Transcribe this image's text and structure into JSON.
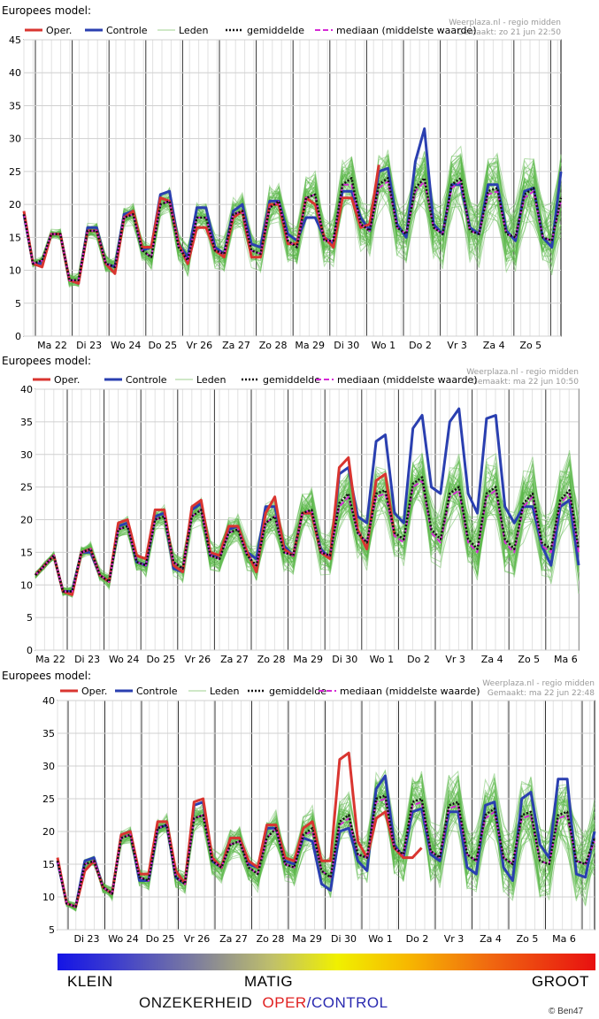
{
  "chart_data": [
    {
      "type": "line",
      "title": "Europees model:",
      "source": "Weerplaza.nl - regio midden",
      "made": "Gemaakt: zo 21 jun 22:50",
      "ylim": [
        0,
        45
      ],
      "yticks": [
        0,
        5,
        10,
        15,
        20,
        25,
        30,
        35,
        40,
        45
      ],
      "day_labels": [
        "Ma 22",
        "Di 23",
        "Wo 24",
        "Do 25",
        "Vr 26",
        "Za 27",
        "Zo 28",
        "Ma 29",
        "Di 30",
        "Wo 1",
        "Do 2",
        "Vr 3",
        "Za 4",
        "Zo 5"
      ],
      "legend": {
        "oper": "Oper.",
        "controle": "Controle",
        "leden": "Leden",
        "gemiddelde": "gemiddelde",
        "mediaan": "mediaan (middelste waarde)"
      },
      "series": {
        "oper": [
          19,
          11,
          10.5,
          15.5,
          15.5,
          8.5,
          8,
          16,
          16,
          11,
          9.5,
          18,
          19,
          13.5,
          13.5,
          21,
          20.5,
          14,
          11,
          16.5,
          16.5,
          13,
          12,
          18,
          19,
          12,
          12,
          20,
          20,
          14,
          14,
          21,
          20,
          15,
          13.5,
          21,
          21,
          16.5,
          17,
          26,
          null
        ],
        "controle": [
          18.5,
          11,
          11,
          15.5,
          15.5,
          8.5,
          8,
          16.5,
          16.5,
          11,
          10.5,
          18.5,
          19,
          13,
          13.5,
          21.5,
          22,
          14,
          12,
          19.5,
          19.5,
          13.5,
          12.5,
          19,
          20,
          14,
          13.5,
          20.5,
          20.5,
          15.5,
          14.5,
          18,
          18,
          15,
          14,
          22,
          22,
          18,
          16,
          25,
          25.5,
          17,
          15,
          26.5,
          31.5,
          17,
          15.5,
          23,
          23,
          16.5,
          15.5,
          23,
          23,
          16,
          14.5,
          22,
          22.5,
          15,
          13.5,
          25
        ],
        "gemiddelde": [
          18.5,
          11,
          11.5,
          15.5,
          15.5,
          8.5,
          8.5,
          16,
          16,
          11,
          10.5,
          18,
          18.5,
          13,
          12,
          20,
          20.5,
          13.5,
          11.5,
          18,
          18,
          13,
          12.5,
          18.5,
          19,
          13,
          12.5,
          19.5,
          20.5,
          14.5,
          13.5,
          21,
          21.5,
          14.5,
          14.5,
          23,
          24,
          17,
          16,
          23,
          24,
          16.5,
          15.5,
          22.5,
          24,
          16.5,
          15.5,
          23,
          24,
          16,
          15.5,
          22,
          22.5,
          15.5,
          15,
          21.5,
          22.5,
          15,
          14.5,
          21
        ],
        "mediaan": [
          18.5,
          11,
          11.5,
          15.5,
          15.5,
          8.5,
          8.5,
          16,
          16,
          11,
          10.5,
          18,
          18.5,
          13,
          12,
          20,
          20.5,
          13.5,
          11.5,
          18,
          18,
          13,
          12.5,
          18.5,
          19,
          13,
          12.5,
          19.5,
          20.5,
          14.5,
          13.5,
          21,
          21.5,
          14.5,
          14.5,
          23,
          23,
          17,
          16,
          22.5,
          23.5,
          16.5,
          15.5,
          22,
          23.5,
          16.5,
          15.5,
          22.5,
          23.5,
          16,
          15.5,
          21.5,
          22,
          15.5,
          15,
          21,
          22,
          15,
          14.5,
          20.5
        ]
      }
    },
    {
      "type": "line",
      "title": "Europees model:",
      "source": "Weerplaza.nl - regio midden",
      "made": "Gemaakt: ma 22 jun 10:50",
      "ylim": [
        0,
        40
      ],
      "yticks": [
        0,
        5,
        10,
        15,
        20,
        25,
        30,
        35,
        40
      ],
      "day_labels": [
        "Ma 22",
        "Di 23",
        "Wo 24",
        "Do 25",
        "Vr 26",
        "Za 27",
        "Zo 28",
        "Ma 29",
        "Di 30",
        "Wo 1",
        "Do 2",
        "Vr 3",
        "Za 4",
        "Zo 5",
        "Ma 6"
      ],
      "legend": {
        "oper": "Oper.",
        "controle": "Controle",
        "leden": "Leden",
        "gemiddelde": "gemiddelde",
        "mediaan": "mediaan (middelste waarde)"
      },
      "series": {
        "oper": [
          11.5,
          13,
          14.5,
          9,
          8.5,
          15,
          15.5,
          11.5,
          10.5,
          19.5,
          20,
          14.5,
          14,
          21.5,
          21.5,
          13,
          12,
          22,
          23,
          15,
          14.5,
          19,
          19,
          15,
          12,
          21,
          23.5,
          15.5,
          14.5,
          21,
          21,
          15,
          14,
          28,
          29.5,
          18.5,
          15.5,
          26,
          27,
          17.5
        ],
        "controle": [
          11.5,
          13,
          14.5,
          9,
          9,
          15,
          15,
          11.5,
          10.5,
          19,
          19.5,
          13.5,
          13,
          20.5,
          21,
          12.5,
          12,
          21.5,
          22.5,
          14.5,
          14.5,
          18.5,
          19,
          15,
          14,
          22,
          22,
          16,
          14.5,
          21,
          21,
          15.5,
          14,
          27,
          28,
          20.5,
          19.5,
          32,
          33,
          21,
          19.5,
          34,
          36,
          25,
          24,
          35,
          37,
          24,
          21,
          35.5,
          36,
          22,
          19.5,
          22,
          22,
          16,
          13,
          22,
          23,
          13
        ],
        "gemiddelde": [
          11.5,
          13,
          14.5,
          9,
          9,
          15,
          15.5,
          11.5,
          10.5,
          18.5,
          19,
          13.5,
          13,
          20,
          20.5,
          13.5,
          12.5,
          20.5,
          21.5,
          14.5,
          14,
          18,
          18.5,
          14.5,
          13,
          19.5,
          20.5,
          15,
          14.5,
          21,
          21.5,
          15,
          14.5,
          22.5,
          24,
          18,
          16.5,
          24,
          24.5,
          18,
          17,
          25.5,
          26.5,
          18.5,
          17,
          24,
          25,
          17,
          15.5,
          24,
          25,
          17,
          15.5,
          22.5,
          24,
          16.5,
          15.5,
          23,
          24.5,
          15.5
        ],
        "mediaan": [
          11.5,
          13,
          14.5,
          9,
          9,
          15,
          15.5,
          11.5,
          10.5,
          18.5,
          19,
          13.5,
          13,
          20,
          20.5,
          13.5,
          12.5,
          20.5,
          21.5,
          14.5,
          14,
          18,
          18.5,
          14.5,
          13,
          19.5,
          20.5,
          15,
          14.5,
          21,
          21.5,
          15,
          14.5,
          22,
          23.5,
          18,
          16.5,
          23.5,
          24,
          17.5,
          16.5,
          25,
          26,
          18,
          16.5,
          23.5,
          24.5,
          16.5,
          15,
          23.5,
          24.5,
          16.5,
          15,
          22,
          23.5,
          16,
          15,
          22.5,
          24,
          15
        ]
      }
    },
    {
      "type": "line",
      "title": "Europees model:",
      "source": "Weerplaza.nl - regio midden",
      "made": "Gemaakt: ma 22 jun 22:48",
      "ylim": [
        5,
        40
      ],
      "yticks": [
        5,
        10,
        15,
        20,
        25,
        30,
        35,
        40
      ],
      "day_labels": [
        "Di 23",
        "Wo 24",
        "Do 25",
        "Vr 26",
        "Za 27",
        "Zo 28",
        "Ma 29",
        "Di 30",
        "Wo 1",
        "Do 2",
        "Vr 3",
        "Za 4",
        "Zo 5",
        "Ma 6"
      ],
      "legend": {
        "oper": "Oper.",
        "controle": "Controle",
        "leden": "Leden",
        "gemiddelde": "gemiddelde",
        "mediaan": "mediaan (middelste waarde)"
      },
      "series": {
        "oper": [
          16,
          9,
          8.5,
          14,
          15.5,
          11.5,
          10.5,
          19.5,
          20,
          13.5,
          13.5,
          21.5,
          21.5,
          14,
          12,
          24.5,
          25,
          16,
          14.5,
          19,
          19,
          15.5,
          14.5,
          21,
          21,
          16,
          15.5,
          20.5,
          21.5,
          15.5,
          15.5,
          31,
          32,
          18.5,
          16,
          22,
          23,
          17.5,
          16,
          16,
          17.5
        ],
        "controle": [
          15.5,
          9,
          8.5,
          15.5,
          16,
          11.5,
          10.5,
          19.5,
          20,
          12.5,
          12.5,
          20.5,
          21,
          13,
          12,
          24,
          24.5,
          15.5,
          14.5,
          19,
          19,
          15,
          14.5,
          20.5,
          20.5,
          15.5,
          15,
          19,
          18.5,
          12,
          11,
          20,
          20.5,
          15.5,
          14,
          26.5,
          28.5,
          18,
          16,
          23,
          23.5,
          16.5,
          15.5,
          23,
          23,
          14.5,
          13.5,
          24,
          24.5,
          14.5,
          12.5,
          25,
          26,
          18,
          16,
          28,
          28,
          13.5,
          13,
          20
        ],
        "gemiddelde": [
          15.5,
          9,
          8.5,
          15,
          15.5,
          11.5,
          10.5,
          19,
          19.5,
          13,
          12.5,
          20.5,
          21,
          13,
          12,
          22,
          22.5,
          15.5,
          14.5,
          18,
          18.5,
          14.5,
          13.5,
          19,
          20.5,
          15,
          14.5,
          19.5,
          20.5,
          14,
          13,
          21.5,
          22.5,
          16.5,
          16,
          25,
          25.5,
          17.5,
          16.5,
          24.5,
          25,
          17,
          16,
          24,
          24.5,
          16.5,
          15.5,
          22.5,
          23.5,
          16,
          15,
          22.5,
          23,
          15.5,
          15,
          22.5,
          23,
          15.5,
          15,
          19
        ],
        "mediaan": [
          15.5,
          9,
          8.5,
          15,
          15.5,
          11.5,
          10.5,
          19,
          19.5,
          13,
          12.5,
          20.5,
          21,
          13,
          12,
          22,
          22.5,
          15.5,
          14.5,
          18,
          18.5,
          14.5,
          13.5,
          19,
          20.5,
          15,
          14.5,
          19.5,
          20,
          14,
          13,
          21,
          22,
          16.5,
          16,
          24.5,
          25,
          17.5,
          16.5,
          24,
          24.5,
          17,
          16,
          23.5,
          24,
          16.5,
          15.5,
          22,
          23,
          16,
          15,
          22,
          22.5,
          15.5,
          15,
          22,
          22.5,
          15.5,
          15,
          18.5
        ]
      }
    }
  ],
  "colors": {
    "oper": "#d93530",
    "controle": "#2a3fb0",
    "leden": "#5cb84a",
    "gemiddelde": "#111111",
    "mediaan": "#d52ad5"
  },
  "scale_bar": {
    "klein": "KLEIN",
    "matig": "MATIG",
    "groot": "GROOT",
    "onzekerheid": "ONZEKERHEID",
    "oper": "OPER",
    "slash": "/",
    "control": "CONTROL"
  },
  "credit": "© Ben47"
}
